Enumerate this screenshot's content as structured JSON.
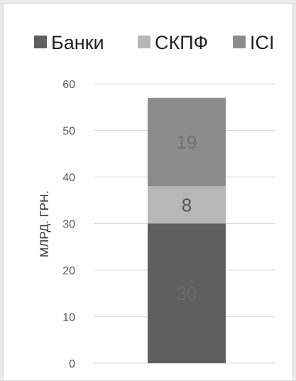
{
  "chart_data": {
    "type": "bar",
    "stacked": true,
    "categories": [
      ""
    ],
    "series": [
      {
        "name": "Банки",
        "values": [
          30
        ],
        "color": "#5f5f5f",
        "label_color": "#6a6a6a"
      },
      {
        "name": "СКПФ",
        "values": [
          8
        ],
        "color": "#b7b7b7",
        "label_color": "#555555"
      },
      {
        "name": "ІСІ",
        "values": [
          19
        ],
        "color": "#8c8c8c",
        "label_color": "#707070"
      }
    ],
    "ylabel": "МЛРД. ГРН.",
    "ylim": [
      0,
      60
    ],
    "yticks": [
      0,
      10,
      20,
      30,
      40,
      50,
      60
    ],
    "legend_position": "top",
    "grid": true
  }
}
